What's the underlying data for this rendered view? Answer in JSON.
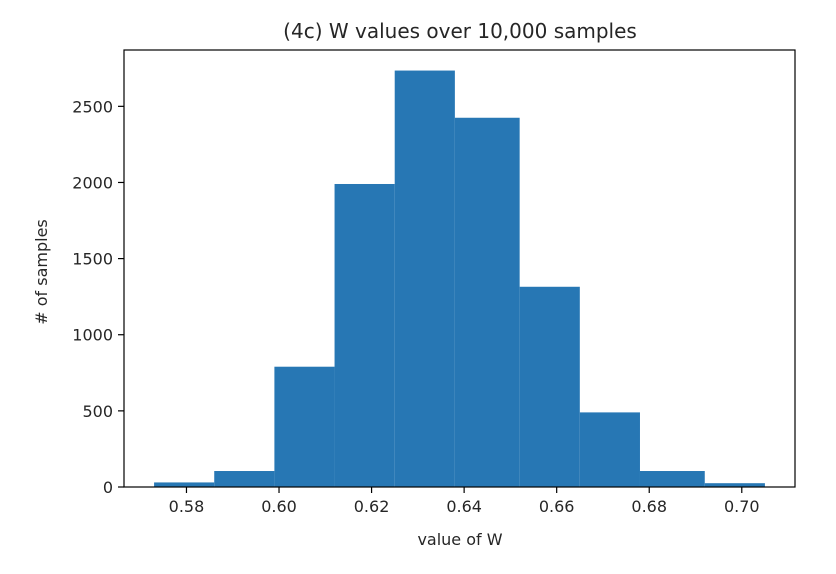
{
  "chart_data": {
    "type": "bar",
    "title": "(4c) W values over 10,000 samples",
    "xlabel": "value of W",
    "ylabel": "# of samples",
    "xlim": [
      0.5665,
      0.7115
    ],
    "ylim": [
      0,
      2870
    ],
    "bin_edges": [
      0.573,
      0.586,
      0.599,
      0.612,
      0.625,
      0.638,
      0.652,
      0.665,
      0.678,
      0.692,
      0.705
    ],
    "counts": [
      30,
      105,
      790,
      1990,
      2735,
      2425,
      1315,
      490,
      105,
      25
    ],
    "xticks": [
      0.58,
      0.6,
      0.62,
      0.64,
      0.66,
      0.68,
      0.7
    ],
    "xtick_labels": [
      "0.58",
      "0.60",
      "0.62",
      "0.64",
      "0.66",
      "0.68",
      "0.70"
    ],
    "yticks": [
      0,
      500,
      1000,
      1500,
      2000,
      2500
    ],
    "ytick_labels": [
      "0",
      "500",
      "1000",
      "1500",
      "2000",
      "2500"
    ],
    "bar_color": "#2777b4",
    "grid": false,
    "legend": "none"
  }
}
